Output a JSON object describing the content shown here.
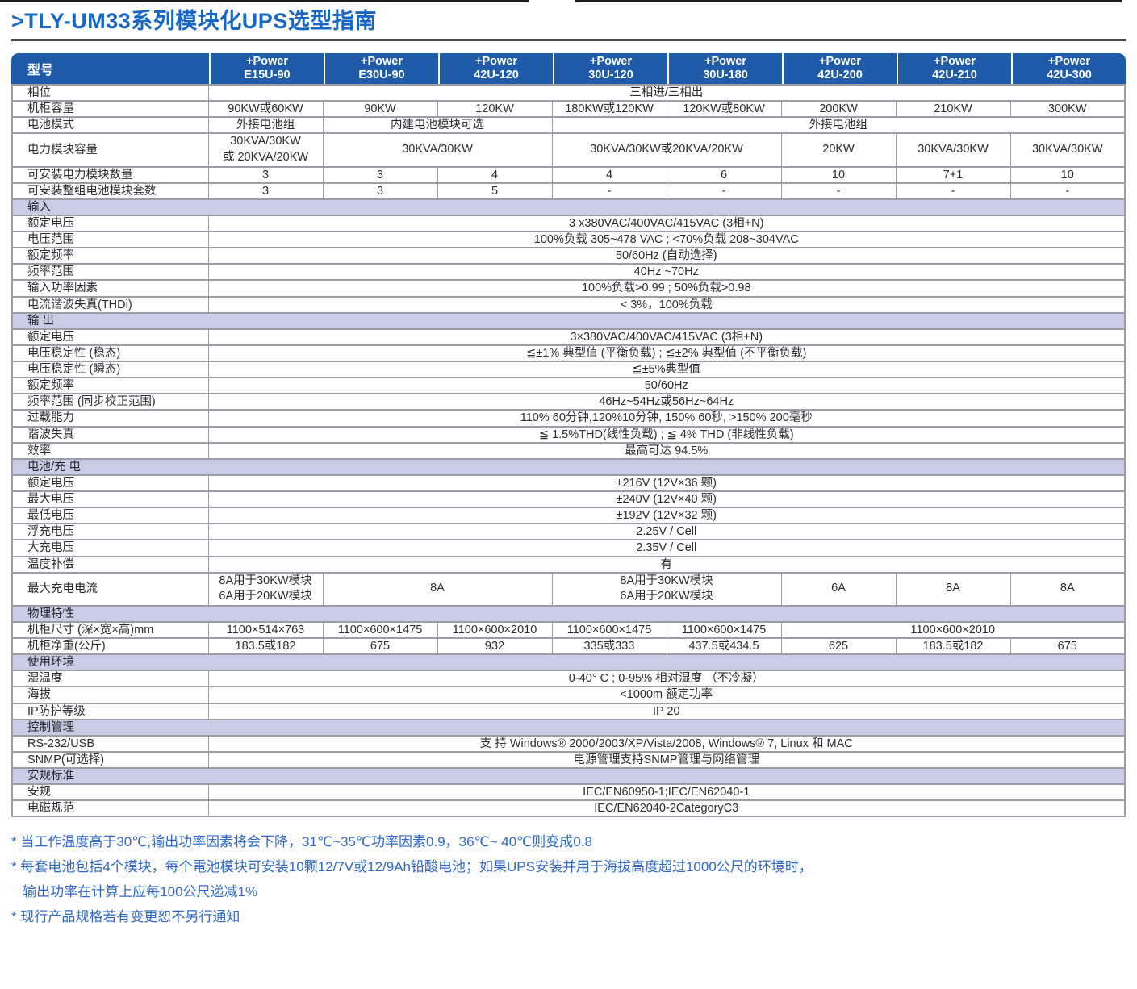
{
  "page": {
    "title": ">TLY-UM33系列模块化UPS选型指南"
  },
  "colors": {
    "header_blue": "#1f5ba8",
    "section_bg": "#c8cce4",
    "title_blue": "#1667c5",
    "footnote_blue": "#2e6ac5",
    "border_gray": "#9d9da5",
    "text_dark": "#2b2b30"
  },
  "table": {
    "corner_label": "型号",
    "columns": [
      {
        "brand": "+Power",
        "model": "E15U-90"
      },
      {
        "brand": "+Power",
        "model": "E30U-90"
      },
      {
        "brand": "+Power",
        "model": "42U-120"
      },
      {
        "brand": "+Power",
        "model": "30U-120"
      },
      {
        "brand": "+Power",
        "model": "30U-180"
      },
      {
        "brand": "+Power",
        "model": "42U-200"
      },
      {
        "brand": "+Power",
        "model": "42U-210"
      },
      {
        "brand": "+Power",
        "model": "42U-300"
      }
    ],
    "rows": [
      {
        "label": "相位",
        "cells": [
          {
            "text": "三相进/三相出",
            "span": 8
          }
        ]
      },
      {
        "label": "机柜容量",
        "cells": [
          {
            "text": "90KW或60KW"
          },
          {
            "text": "90KW"
          },
          {
            "text": "120KW"
          },
          {
            "text": "180KW或120KW"
          },
          {
            "text": "120KW或80KW"
          },
          {
            "text": "200KW"
          },
          {
            "text": "210KW"
          },
          {
            "text": "300KW"
          }
        ]
      },
      {
        "label": "电池模式",
        "cells": [
          {
            "text": "外接电池组"
          },
          {
            "text": "内建电池模块可选",
            "span": 2
          },
          {
            "text": "外接电池组",
            "span": 5
          }
        ]
      },
      {
        "label": "电力模块容量",
        "cells": [
          {
            "text": "30KVA/30KW\n或 20KVA/20KW"
          },
          {
            "text": "30KVA/30KW",
            "span": 2
          },
          {
            "text": "30KVA/30KW或20KVA/20KW",
            "span": 2
          },
          {
            "text": "20KW"
          },
          {
            "text": "30KVA/30KW"
          },
          {
            "text": "30KVA/30KW"
          }
        ]
      },
      {
        "label": "可安装电力模块数量",
        "cells": [
          {
            "text": "3"
          },
          {
            "text": "3"
          },
          {
            "text": "4"
          },
          {
            "text": "4"
          },
          {
            "text": "6"
          },
          {
            "text": "10"
          },
          {
            "text": "7+1"
          },
          {
            "text": "10"
          }
        ]
      },
      {
        "label": "可安装整组电池模块套数",
        "cells": [
          {
            "text": "3"
          },
          {
            "text": "3"
          },
          {
            "text": "5"
          },
          {
            "text": "-"
          },
          {
            "text": "-"
          },
          {
            "text": "-"
          },
          {
            "text": "-"
          },
          {
            "text": "-"
          }
        ]
      },
      {
        "type": "section",
        "label": "输入"
      },
      {
        "label": "额定电压",
        "cells": [
          {
            "text": "3 x380VAC/400VAC/415VAC (3相+N)",
            "span": 8
          }
        ]
      },
      {
        "label": "电压范围",
        "cells": [
          {
            "text": "100%负载 305~478 VAC ; <70%负载 208~304VAC",
            "span": 8
          }
        ]
      },
      {
        "label": "额定频率",
        "cells": [
          {
            "text": "50/60Hz (自动选择)",
            "span": 8
          }
        ]
      },
      {
        "label": "频率范围",
        "cells": [
          {
            "text": "40Hz ~70Hz",
            "span": 8
          }
        ]
      },
      {
        "label": "输入功率因素",
        "cells": [
          {
            "text": "100%负载>0.99 ; 50%负载>0.98",
            "span": 8
          }
        ]
      },
      {
        "label": "电流谐波失真(THDi)",
        "cells": [
          {
            "text": "< 3%，100%负载",
            "span": 8
          }
        ]
      },
      {
        "type": "section",
        "label": "输 出"
      },
      {
        "label": "额定电压",
        "cells": [
          {
            "text": "3×380VAC/400VAC/415VAC (3相+N)",
            "span": 8
          }
        ]
      },
      {
        "label": "电压稳定性 (稳态)",
        "cells": [
          {
            "text": "≦±1% 典型值 (平衡负载) ; ≦±2% 典型值 (不平衡负载)",
            "span": 8
          }
        ]
      },
      {
        "label": "电压稳定性 (瞬态)",
        "cells": [
          {
            "text": "≦±5%典型值",
            "span": 8
          }
        ]
      },
      {
        "label": "额定频率",
        "cells": [
          {
            "text": "50/60Hz",
            "span": 8
          }
        ]
      },
      {
        "label": "频率范围 (同步校正范围)",
        "cells": [
          {
            "text": "46Hz~54Hz或56Hz~64Hz",
            "span": 8
          }
        ]
      },
      {
        "label": "过载能力",
        "cells": [
          {
            "text": "110% 60分钟,120%10分钟, 150% 60秒, >150% 200毫秒",
            "span": 8
          }
        ]
      },
      {
        "label": "谐波失真",
        "cells": [
          {
            "text": "≦ 1.5%THD(线性负载) ; ≦ 4% THD (非线性负载)",
            "span": 8
          }
        ]
      },
      {
        "label": "效率",
        "cells": [
          {
            "text": "最高可达 94.5%",
            "span": 8
          }
        ]
      },
      {
        "type": "section",
        "label": "电池/充 电"
      },
      {
        "label": "额定电压",
        "cells": [
          {
            "text": "±216V (12V×36 颗)",
            "span": 8
          }
        ]
      },
      {
        "label": "最大电压",
        "cells": [
          {
            "text": "±240V (12V×40 颗)",
            "span": 8
          }
        ]
      },
      {
        "label": "最低电压",
        "cells": [
          {
            "text": "±192V (12V×32 颗)",
            "span": 8
          }
        ]
      },
      {
        "label": "浮充电压",
        "cells": [
          {
            "text": "2.25V / Cell",
            "span": 8
          }
        ]
      },
      {
        "label": "大充电压",
        "cells": [
          {
            "text": "2.35V / Cell",
            "span": 8
          }
        ]
      },
      {
        "label": "温度补偿",
        "cells": [
          {
            "text": "有",
            "span": 8
          }
        ]
      },
      {
        "label": "最大充电电流",
        "cells": [
          {
            "text": "8A用于30KW模块\n6A用于20KW模块"
          },
          {
            "text": "8A",
            "span": 2
          },
          {
            "text": "8A用于30KW模块\n6A用于20KW模块",
            "span": 2
          },
          {
            "text": "6A"
          },
          {
            "text": "8A"
          },
          {
            "text": "8A"
          }
        ]
      },
      {
        "type": "section",
        "label": "物理特性"
      },
      {
        "label": "机柜尺寸 (深×宽×高)mm",
        "cells": [
          {
            "text": "1100×514×763"
          },
          {
            "text": "1100×600×1475"
          },
          {
            "text": "1100×600×2010"
          },
          {
            "text": "1100×600×1475"
          },
          {
            "text": "1100×600×1475"
          },
          {
            "text": "1100×600×2010",
            "span": 3
          }
        ]
      },
      {
        "label": "机柜净重(公斤)",
        "cells": [
          {
            "text": "183.5或182"
          },
          {
            "text": "675"
          },
          {
            "text": "932"
          },
          {
            "text": "335或333"
          },
          {
            "text": "437.5或434.5"
          },
          {
            "text": "625"
          },
          {
            "text": "183.5或182"
          },
          {
            "text": "675"
          }
        ]
      },
      {
        "type": "section",
        "label": "使用环境"
      },
      {
        "label": "湿温度",
        "cells": [
          {
            "text": "0-40° C ; 0-95% 相对湿度 （不冷凝）",
            "span": 8
          }
        ]
      },
      {
        "label": "海拔",
        "cells": [
          {
            "text": "<1000m 额定功率",
            "span": 8
          }
        ]
      },
      {
        "label": "IP防护等级",
        "cells": [
          {
            "text": "IP 20",
            "span": 8
          }
        ]
      },
      {
        "type": "section",
        "label": "控制管理"
      },
      {
        "label": "RS-232/USB",
        "cells": [
          {
            "text": "支 持 Windows® 2000/2003/XP/Vista/2008, Windows® 7, Linux 和 MAC",
            "span": 8
          }
        ]
      },
      {
        "label": "SNMP(可选择)",
        "cells": [
          {
            "text": "电源管理支持SNMP管理与网络管理",
            "span": 8
          }
        ]
      },
      {
        "type": "section",
        "label": "安规标准"
      },
      {
        "label": "安规",
        "cells": [
          {
            "text": "IEC/EN60950-1;IEC/EN62040-1",
            "span": 8
          }
        ]
      },
      {
        "label": "电磁规范",
        "cells": [
          {
            "text": "IEC/EN62040-2CategoryC3",
            "span": 8
          }
        ]
      }
    ]
  },
  "footnotes": [
    "* 当工作温度高于30℃,输出功率因素将会下降，31℃~35℃功率因素0.9，36℃~ 40℃则变成0.8",
    "* 每套电池包括4个模块，每个電池模块可安装10颗12/7V或12/9Ah铅酸电池；如果UPS安装并用于海拔高度超过1000公尺的环境时，\n   输出功率在计算上应每100公尺递减1%",
    "* 现行产品规格若有变更恕不另行通知"
  ]
}
